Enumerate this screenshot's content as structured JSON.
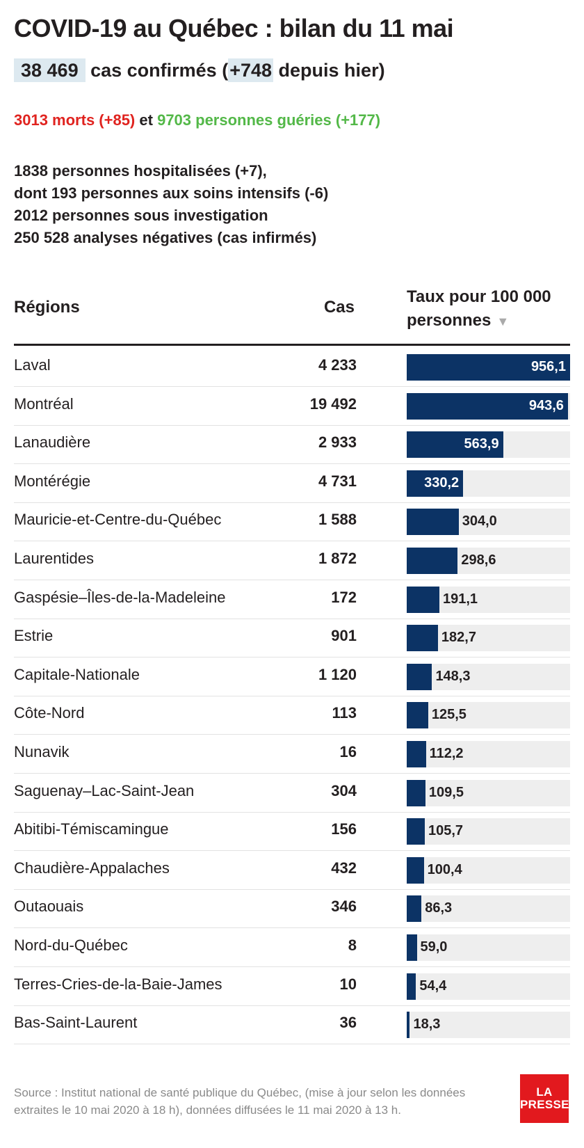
{
  "title": "COVID-19 au Québec : bilan du 11 mai",
  "summary": {
    "cases_total": "38 469",
    "cases_text": "cas confirmés (",
    "cases_new": "+748",
    "cases_suffix": "depuis hier)",
    "deaths": "3013 morts (+85)",
    "connector": "et",
    "recovered": "9703 personnes guéries (+177)",
    "stats": [
      "1838 personnes hospitalisées (+7),",
      "dont 193 personnes aux soins intensifs (-6)",
      "2012 personnes sous investigation",
      "250 528 analyses négatives (cas infirmés)"
    ]
  },
  "table": {
    "col_regions": "Régions",
    "col_cases": "Cas",
    "col_rate_line1": "Taux pour 100 000",
    "col_rate_line2": "personnes",
    "sort_icon": "sort-down-icon"
  },
  "colors": {
    "bar": "#0c3365",
    "track": "#eeeeee",
    "deaths": "#e0231f",
    "recovered": "#53b848",
    "highlight": "#dde9f0",
    "logo": "#e2191e"
  },
  "chart_data": {
    "type": "bar",
    "categories": [
      "Laval",
      "Montréal",
      "Lanaudière",
      "Montérégie",
      "Mauricie-et-Centre-du-Québec",
      "Laurentides",
      "Gaspésie–Îles-de-la-Madeleine",
      "Estrie",
      "Capitale-Nationale",
      "Côte-Nord",
      "Nunavik",
      "Saguenay–Lac-Saint-Jean",
      "Abitibi-Témiscamingue",
      "Chaudière-Appalaches",
      "Outaouais",
      "Nord-du-Québec",
      "Terres-Cries-de-la-Baie-James",
      "Bas-Saint-Laurent"
    ],
    "cases": [
      "4 233",
      "19 492",
      "2 933",
      "4 731",
      "1 588",
      "1 872",
      "172",
      "901",
      "1 120",
      "113",
      "16",
      "304",
      "156",
      "432",
      "346",
      "8",
      "10",
      "36"
    ],
    "values": [
      956.1,
      943.6,
      563.9,
      330.2,
      304.0,
      298.6,
      191.1,
      182.7,
      148.3,
      125.5,
      112.2,
      109.5,
      105.7,
      100.4,
      86.3,
      59.0,
      54.4,
      18.3
    ],
    "value_labels": [
      "956,1",
      "943,6",
      "563,9",
      "330,2",
      "304,0",
      "298,6",
      "191,1",
      "182,7",
      "148,3",
      "125,5",
      "112,2",
      "109,5",
      "105,7",
      "100,4",
      "86,3",
      "59,0",
      "54,4",
      "18,3"
    ],
    "xlim": [
      0,
      956.1
    ]
  },
  "footer": {
    "source_line1": "Source : Institut national de santé publique du Québec, (mise à jour selon les données",
    "source_line2": "extraites le 10 mai 2020 à 18 h), données diffusées le 11 mai 2020 à 13 h.",
    "logo_line1": "LA",
    "logo_line2": "PRESSE"
  }
}
